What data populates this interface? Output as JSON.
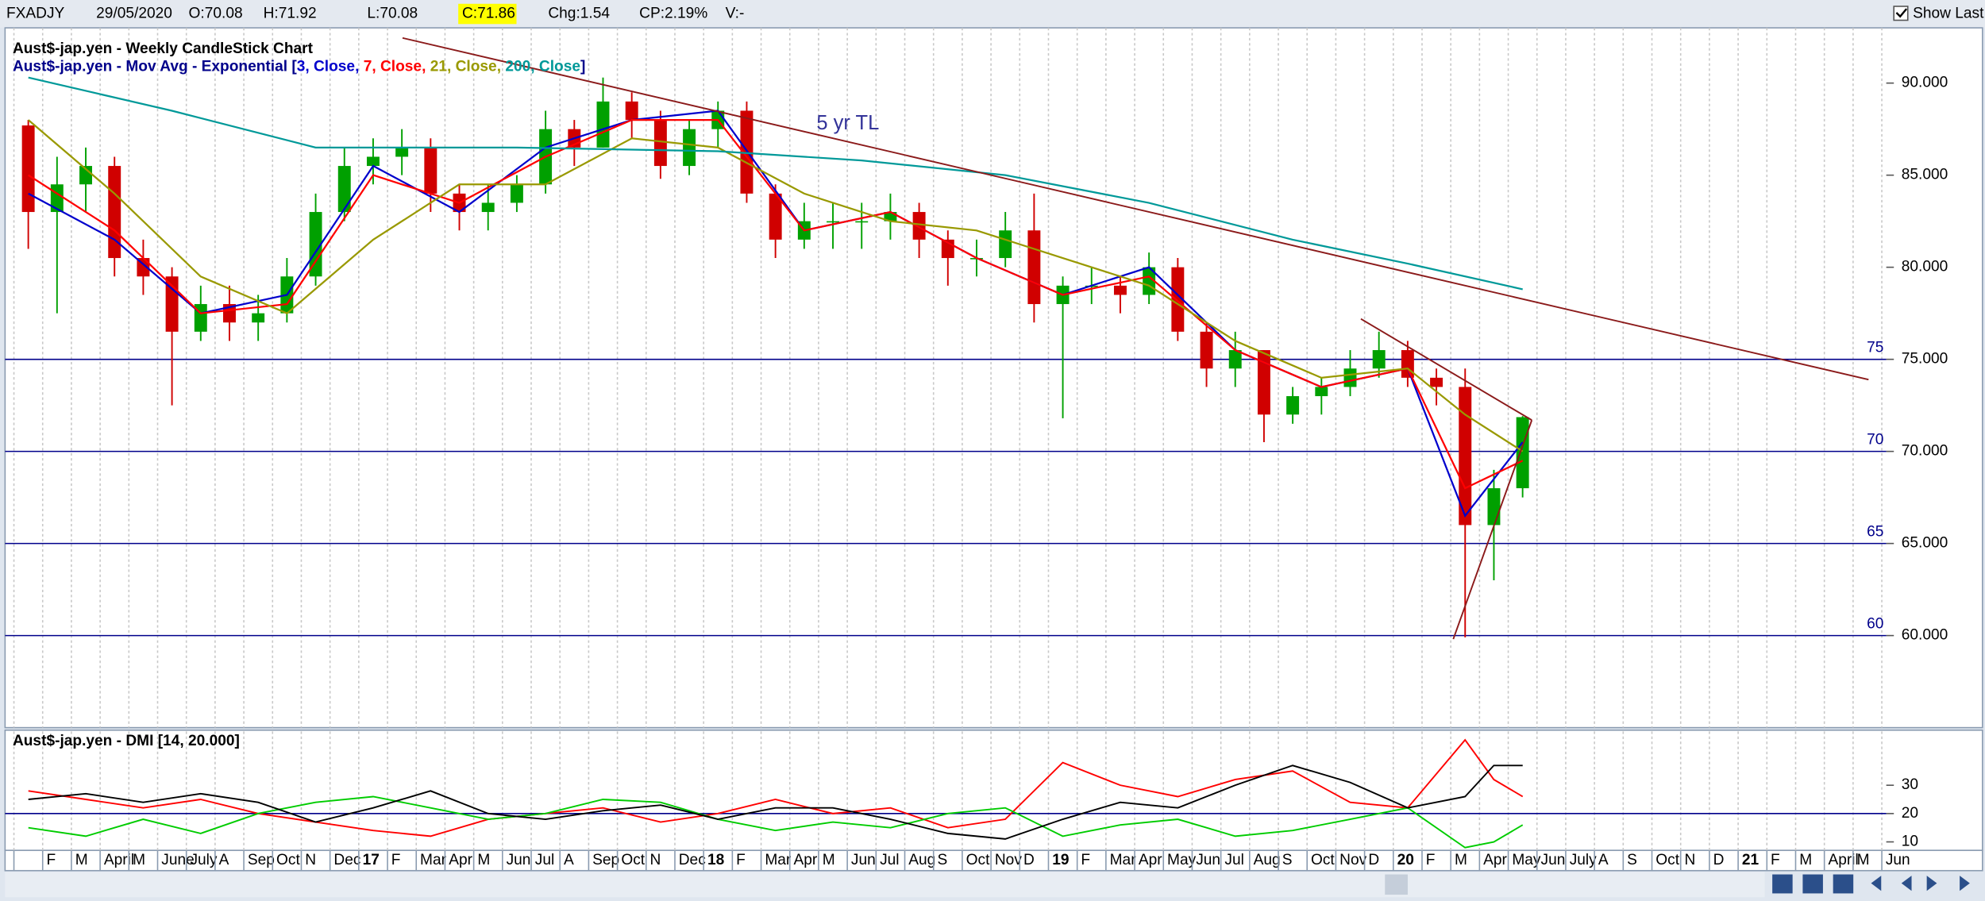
{
  "header": {
    "symbol": "FXADJY",
    "date": "29/05/2020",
    "open": "O:70.08",
    "high": "H:71.92",
    "low": "L:70.08",
    "close": "C:71.86",
    "change": "Chg:1.54",
    "change_pct": "CP:2.19%",
    "volume": "V:-",
    "show_last": "Show Last"
  },
  "chart_data": [
    {
      "type": "candlestick",
      "title": "Aust$-jap.yen - Weekly CandleStick Chart",
      "indicator_prefix": "Aust$-jap.yen - Mov Avg - Exponential [",
      "indicator_separator": ", ",
      "indicator_suffix": "]",
      "annotation": "5 yr TL",
      "categories": [
        null,
        "F",
        "M",
        "April",
        "M",
        "June",
        "July",
        "A",
        "Sep",
        "Oct",
        "N",
        "Dec",
        "17",
        "F",
        "Mar",
        "Apr",
        "M",
        "Jun",
        "Jul",
        "A",
        "Sep",
        "Oct",
        "N",
        "Dec",
        "18",
        "F",
        "Mar",
        "Apr",
        "M",
        "Jun",
        "Jul",
        "Aug",
        "S",
        "Oct",
        "Nov",
        "D",
        "19",
        "F",
        "Mar",
        "Apr",
        "May",
        "Jun",
        "Jul",
        "Aug",
        "S",
        "Oct",
        "Nov",
        "D",
        "20",
        "F",
        "M",
        "Apr",
        "May",
        "Jun",
        "July",
        "A",
        "S",
        "Oct",
        "N",
        "D",
        "21",
        "F",
        "M",
        "April",
        "M",
        "Jun"
      ],
      "start_month": "2016-01",
      "x": [
        "2016-01",
        "2016-02",
        "2016-03",
        "2016-04",
        "2016-05",
        "2016-06",
        "2016-07",
        "2016-08",
        "2016-09",
        "2016-10",
        "2016-11",
        "2016-12",
        "2017-01",
        "2017-02",
        "2017-03",
        "2017-04",
        "2017-05",
        "2017-06",
        "2017-07",
        "2017-08",
        "2017-09",
        "2017-10",
        "2017-11",
        "2017-12",
        "2018-01",
        "2018-02",
        "2018-03",
        "2018-04",
        "2018-05",
        "2018-06",
        "2018-07",
        "2018-08",
        "2018-09",
        "2018-10",
        "2018-11",
        "2018-12",
        "2019-01",
        "2019-02",
        "2019-03",
        "2019-04",
        "2019-05",
        "2019-06",
        "2019-07",
        "2019-08",
        "2019-09",
        "2019-10",
        "2019-11",
        "2019-12",
        "2020-01",
        "2020-02",
        "2020-03",
        "2020-04",
        "2020-05"
      ],
      "open": [
        87.7,
        83.0,
        84.5,
        85.5,
        80.5,
        79.5,
        76.5,
        78.0,
        77.0,
        77.5,
        79.5,
        83.0,
        85.5,
        86.0,
        86.5,
        84.0,
        83.0,
        83.5,
        84.5,
        87.5,
        86.5,
        89.0,
        88.0,
        85.5,
        87.5,
        88.5,
        84.0,
        81.5,
        82.5,
        82.5,
        82.5,
        83.0,
        81.5,
        80.5,
        80.5,
        82.0,
        78.0,
        79.0,
        79.0,
        78.5,
        80.0,
        76.5,
        74.5,
        75.5,
        72.0,
        73.0,
        73.5,
        74.5,
        75.5,
        74.0,
        73.5,
        66.0,
        68.0
      ],
      "high": [
        88.0,
        86.0,
        86.5,
        86.0,
        81.5,
        80.0,
        79.0,
        79.0,
        78.5,
        80.5,
        84.0,
        86.5,
        87.0,
        87.5,
        87.0,
        84.5,
        84.5,
        85.0,
        88.5,
        88.0,
        90.3,
        89.5,
        88.5,
        88.0,
        89.0,
        89.0,
        84.5,
        83.5,
        83.5,
        83.5,
        84.0,
        83.5,
        82.0,
        81.5,
        83.0,
        84.0,
        79.5,
        80.0,
        79.5,
        80.8,
        80.5,
        77.0,
        76.5,
        75.5,
        73.5,
        74.0,
        75.5,
        76.5,
        76.0,
        74.5,
        74.5,
        69.0,
        71.92
      ],
      "low": [
        81.0,
        77.5,
        83.0,
        79.5,
        78.5,
        72.5,
        76.0,
        76.0,
        76.0,
        77.0,
        79.0,
        82.5,
        84.5,
        85.0,
        83.0,
        82.0,
        82.0,
        83.0,
        84.0,
        85.5,
        86.5,
        87.0,
        84.8,
        85.0,
        86.5,
        83.5,
        80.5,
        81.0,
        81.0,
        81.0,
        81.5,
        80.5,
        79.0,
        79.5,
        80.0,
        77.0,
        71.8,
        78.0,
        77.5,
        78.0,
        76.0,
        73.5,
        73.5,
        70.5,
        71.5,
        72.0,
        73.0,
        74.0,
        73.5,
        72.5,
        59.9,
        63.0,
        67.5
      ],
      "close": [
        83.0,
        84.5,
        85.5,
        80.5,
        79.5,
        76.5,
        78.0,
        77.0,
        77.5,
        79.5,
        83.0,
        85.5,
        86.0,
        86.5,
        84.0,
        83.0,
        83.5,
        84.5,
        87.5,
        86.5,
        89.0,
        88.0,
        85.5,
        87.5,
        88.5,
        84.0,
        81.5,
        82.5,
        82.5,
        82.5,
        83.0,
        81.5,
        80.5,
        80.5,
        82.0,
        78.0,
        79.0,
        79.0,
        78.5,
        80.0,
        76.5,
        74.5,
        75.5,
        72.0,
        73.0,
        73.5,
        74.5,
        75.5,
        74.0,
        73.5,
        66.0,
        68.0,
        71.86
      ],
      "up_color": "#00a000",
      "down_color": "#d00000",
      "series": [
        {
          "name": "3, Close",
          "color": "#0000cc",
          "x": [
            "2016-01",
            "2016-04",
            "2016-07",
            "2016-10",
            "2017-01",
            "2017-04",
            "2017-07",
            "2017-10",
            "2018-01",
            "2018-04",
            "2018-07",
            "2018-10",
            "2019-01",
            "2019-04",
            "2019-07",
            "2019-10",
            "2020-01",
            "2020-03",
            "2020-05"
          ],
          "values": [
            84,
            81.5,
            77.5,
            78.5,
            85.5,
            83,
            86.5,
            88,
            88.5,
            82,
            83,
            80.5,
            78.5,
            80,
            75.5,
            73.5,
            74.5,
            66.5,
            70.5
          ]
        },
        {
          "name": "7, Close",
          "color": "#ff0000",
          "x": [
            "2016-01",
            "2016-04",
            "2016-07",
            "2016-10",
            "2017-01",
            "2017-04",
            "2017-07",
            "2017-10",
            "2018-01",
            "2018-04",
            "2018-07",
            "2018-10",
            "2019-01",
            "2019-04",
            "2019-07",
            "2019-10",
            "2020-01",
            "2020-03",
            "2020-05"
          ],
          "values": [
            85,
            82,
            77.5,
            78,
            85,
            83.5,
            86,
            88,
            88,
            82,
            83,
            80.5,
            78.5,
            79.5,
            75.5,
            73.5,
            74.5,
            68,
            69.5
          ]
        },
        {
          "name": "21, Close",
          "color": "#999900",
          "x": [
            "2016-01",
            "2016-04",
            "2016-07",
            "2016-10",
            "2017-01",
            "2017-04",
            "2017-07",
            "2017-10",
            "2018-01",
            "2018-04",
            "2018-07",
            "2018-10",
            "2019-01",
            "2019-04",
            "2019-07",
            "2019-10",
            "2020-01",
            "2020-03",
            "2020-05"
          ],
          "values": [
            88,
            84,
            79.5,
            77.5,
            81.5,
            84.5,
            84.5,
            87,
            86.5,
            84,
            82.5,
            82,
            80.5,
            79,
            76,
            74,
            74.5,
            72,
            70
          ]
        },
        {
          "name": "200, Close",
          "color": "#009999",
          "x": [
            "2016-01",
            "2016-06",
            "2016-11",
            "2017-06",
            "2018-01",
            "2018-06",
            "2018-11",
            "2019-04",
            "2019-09",
            "2020-01",
            "2020-05"
          ],
          "values": [
            90.3,
            88.5,
            86.5,
            86.5,
            86.3,
            85.8,
            85,
            83.5,
            81.5,
            80.2,
            78.8
          ]
        }
      ],
      "hlines": [
        75,
        70,
        65,
        60
      ],
      "hline_color": "#00008b",
      "ylim": [
        55,
        93
      ],
      "yticks": [
        {
          "value": 60,
          "label": "60.000"
        },
        {
          "value": 65,
          "label": "65.000"
        },
        {
          "value": 70,
          "label": "70.000"
        },
        {
          "value": 75,
          "label": "75.000"
        },
        {
          "value": 80,
          "label": "80.000"
        },
        {
          "value": 85,
          "label": "85.000"
        },
        {
          "value": 90,
          "label": "90.000"
        }
      ],
      "grid": true
    },
    {
      "type": "line",
      "title": "Aust$-jap.yen - DMI [14, 20.000]",
      "x": [
        "2016-01",
        "2016-03",
        "2016-05",
        "2016-07",
        "2016-09",
        "2016-11",
        "2017-01",
        "2017-03",
        "2017-05",
        "2017-07",
        "2017-09",
        "2017-11",
        "2018-01",
        "2018-03",
        "2018-05",
        "2018-07",
        "2018-09",
        "2018-11",
        "2019-01",
        "2019-03",
        "2019-05",
        "2019-07",
        "2019-09",
        "2019-11",
        "2020-01",
        "2020-03",
        "2020-04",
        "2020-05"
      ],
      "series": [
        {
          "color": "#ff0000",
          "values": [
            28,
            25,
            22,
            25,
            20,
            17,
            14,
            12,
            18,
            20,
            22,
            17,
            20,
            25,
            20,
            22,
            15,
            18,
            38,
            30,
            26,
            32,
            35,
            24,
            22,
            46,
            32,
            26
          ]
        },
        {
          "color": "#00cc00",
          "values": [
            15,
            12,
            18,
            13,
            20,
            24,
            26,
            22,
            18,
            20,
            25,
            24,
            18,
            14,
            17,
            15,
            20,
            22,
            12,
            16,
            18,
            12,
            14,
            18,
            22,
            8,
            10,
            16
          ]
        },
        {
          "color": "#000000",
          "values": [
            25,
            27,
            24,
            27,
            24,
            17,
            22,
            28,
            20,
            18,
            21,
            23,
            18,
            22,
            22,
            18,
            13,
            11,
            18,
            24,
            22,
            30,
            37,
            31,
            22,
            26,
            37,
            37
          ]
        }
      ],
      "hline": 20,
      "hline_color": "#00008b",
      "ylim": [
        7,
        49
      ],
      "yticks": [
        10,
        20,
        30
      ]
    }
  ]
}
